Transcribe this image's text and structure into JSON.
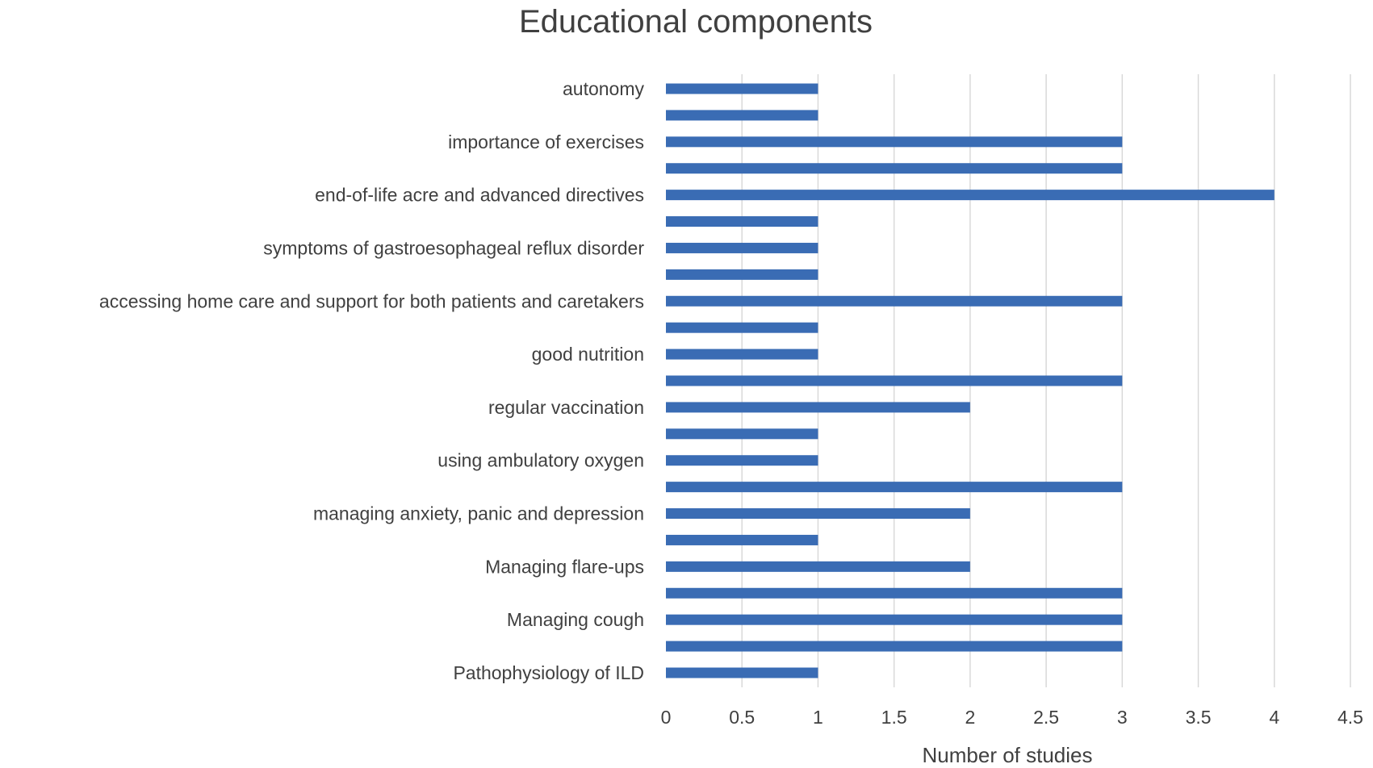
{
  "chart_data": {
    "type": "bar",
    "orientation": "horizontal",
    "title": "Educational components",
    "xlabel": "Number of studies",
    "ylabel": "",
    "xlim": [
      0,
      4.5
    ],
    "x_ticks": [
      "0",
      "0.5",
      "1",
      "1.5",
      "2",
      "2.5",
      "3",
      "3.5",
      "4",
      "4.5"
    ],
    "grid": true,
    "legend": "none",
    "bar_color": "#3a6cb4",
    "categories": [
      "autonomy",
      "",
      "importance of exercises",
      "",
      "end-of-life acre and advanced directives",
      "",
      "symptoms of gastroesophageal reflux disorder",
      "",
      "accessing home care and support for both patients and caretakers",
      "",
      "good nutrition",
      "",
      "regular vaccination",
      "",
      "using ambulatory oxygen",
      "",
      "managing anxiety, panic and depression",
      "",
      "Managing flare-ups",
      "",
      "Managing cough",
      "",
      "Pathophysiology of ILD"
    ],
    "values": [
      1,
      1,
      3,
      3,
      4,
      1,
      1,
      1,
      3,
      1,
      1,
      3,
      2,
      1,
      1,
      3,
      2,
      1,
      2,
      3,
      3,
      3,
      1
    ]
  }
}
